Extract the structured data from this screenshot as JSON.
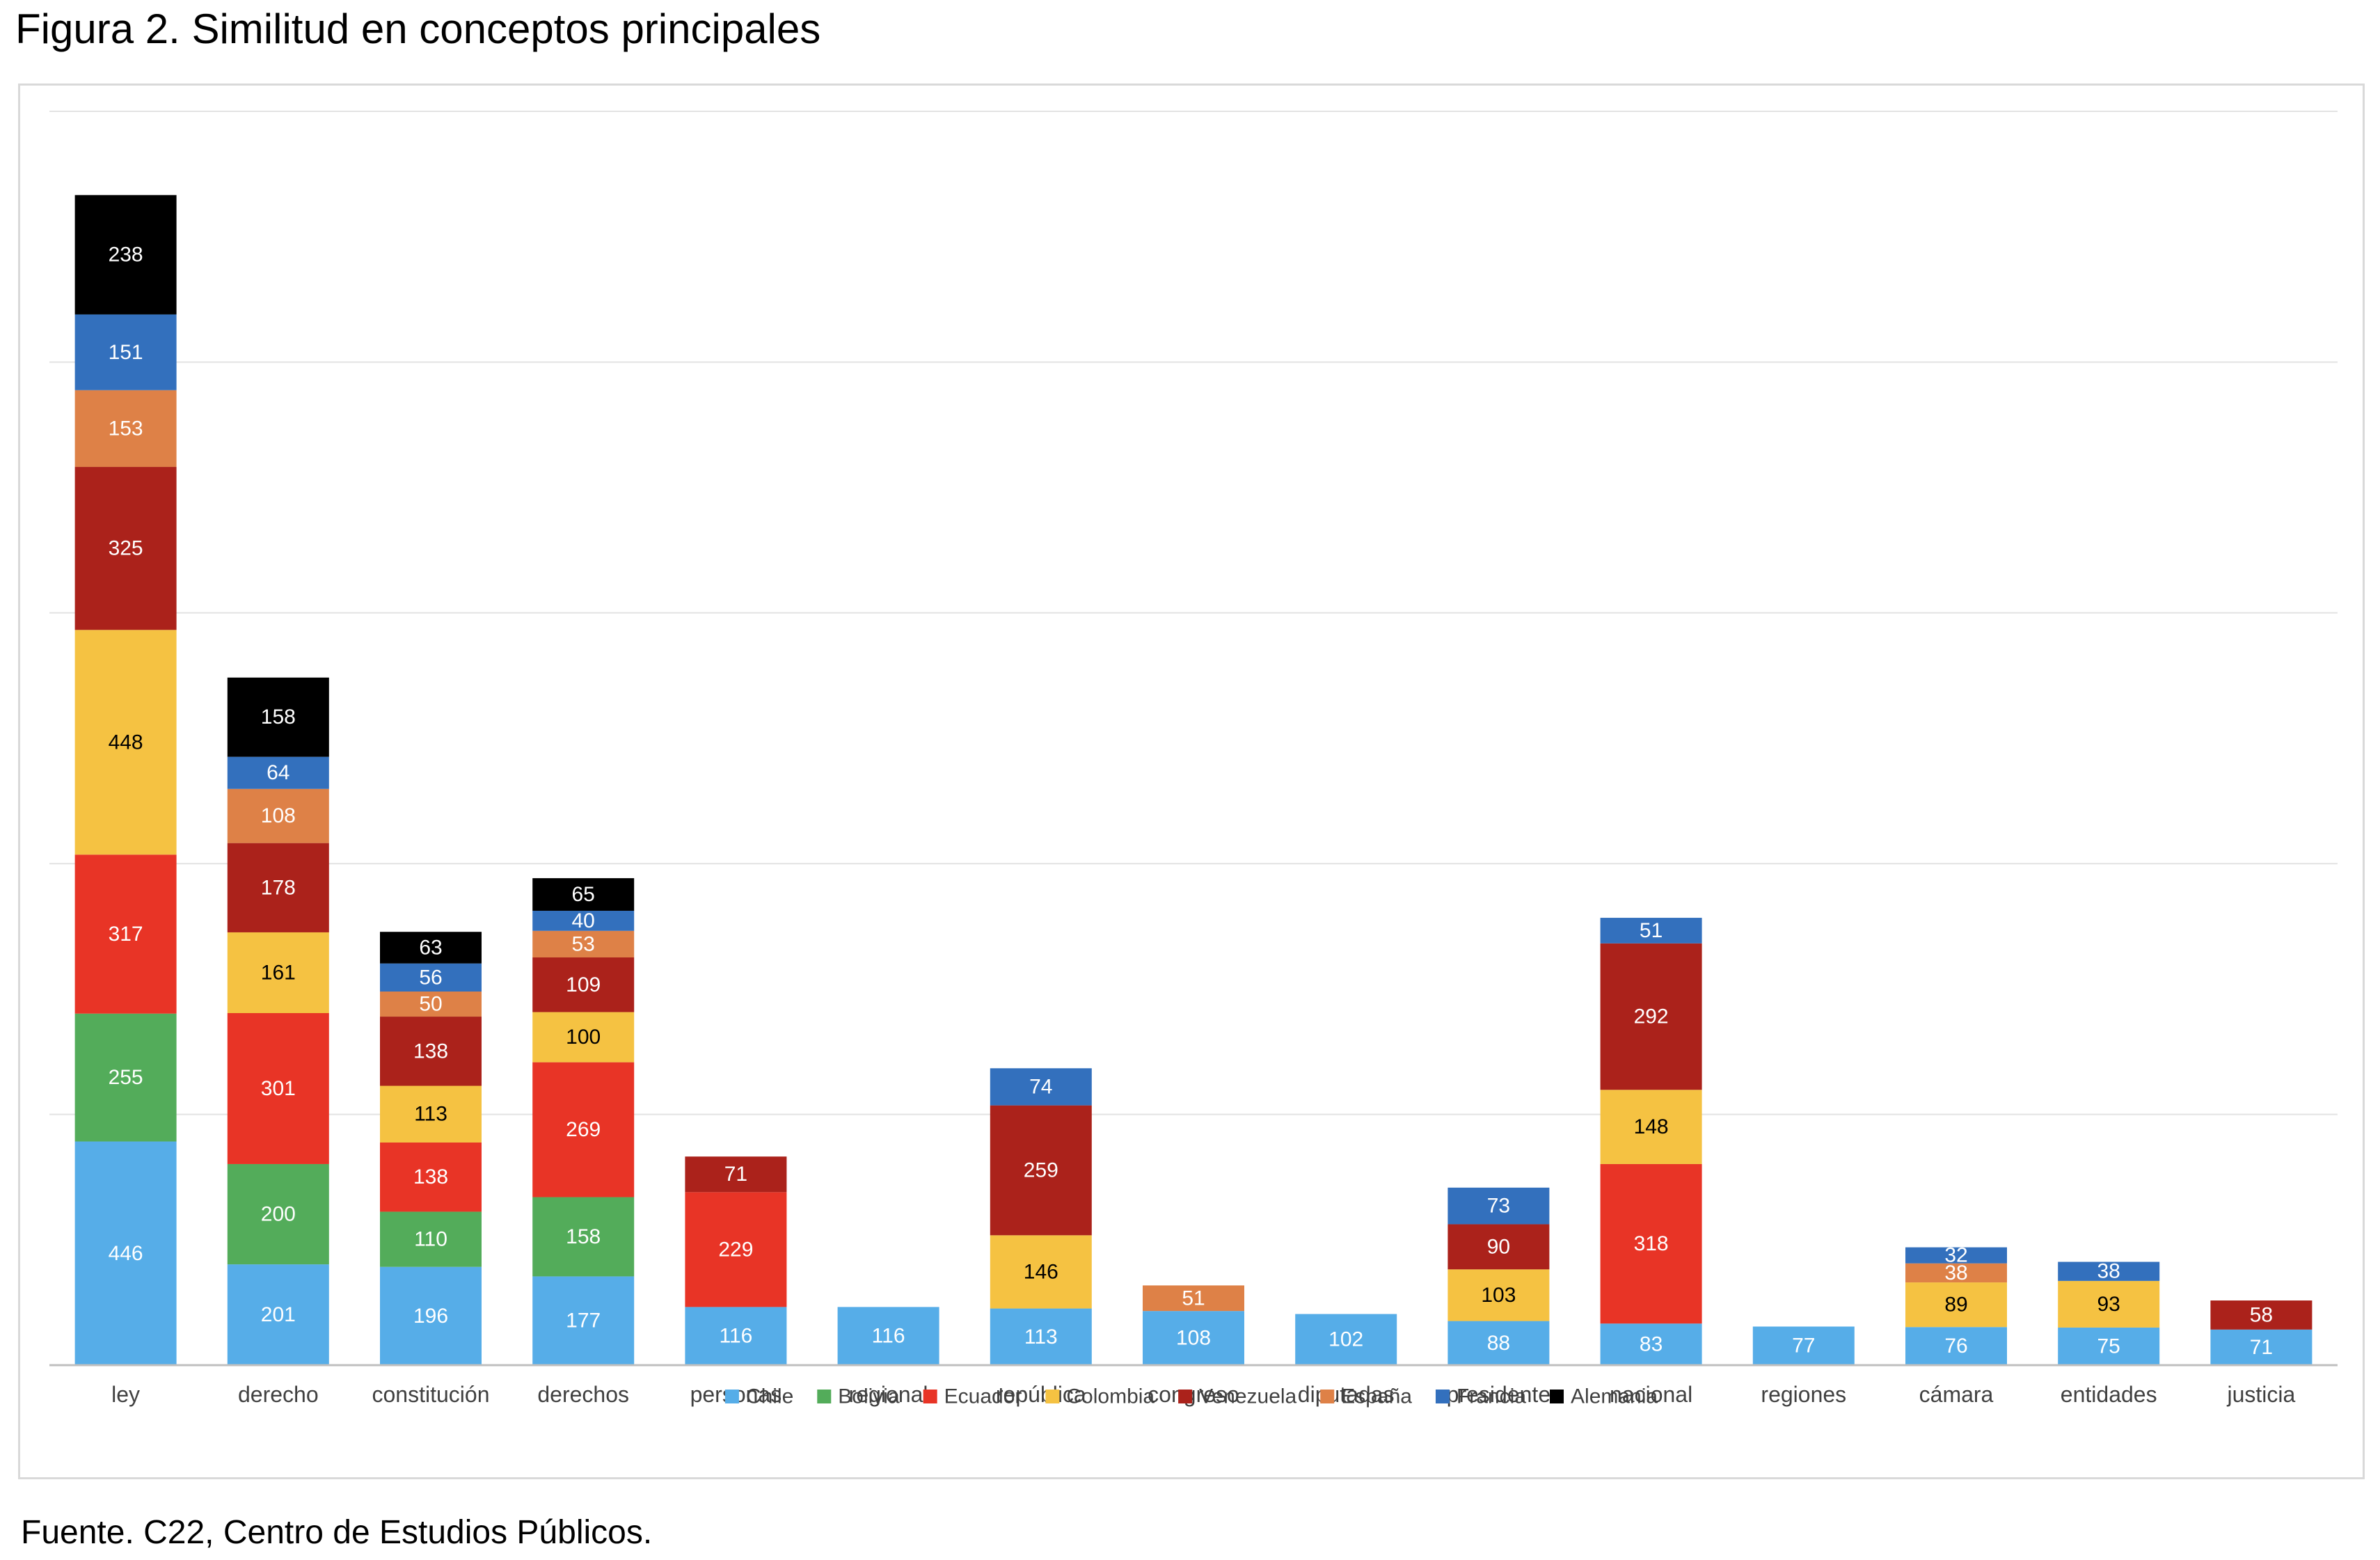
{
  "title": "Figura 2. Similitud en conceptos principales",
  "source": "Fuente. C22, Centro de Estudios Públicos.",
  "chart_data": {
    "type": "bar",
    "stacked": true,
    "title": "",
    "xlabel": "",
    "ylabel": "",
    "ylim": [
      0,
      2500
    ],
    "grid": true,
    "legend_position": "bottom",
    "categories": [
      "ley",
      "derecho",
      "constitución",
      "derechos",
      "personas",
      "regional",
      "república",
      "congreso",
      "diputadas",
      "presidente",
      "nacional",
      "regiones",
      "cámara",
      "entidades",
      "justicia"
    ],
    "series": [
      {
        "name": "Chile",
        "color": "#56ADE8",
        "label_color": "#ffffff",
        "values": [
          446,
          201,
          196,
          177,
          116,
          116,
          113,
          108,
          102,
          88,
          83,
          77,
          76,
          75,
          71
        ]
      },
      {
        "name": "Bolivia",
        "color": "#53AC5A",
        "label_color": "#ffffff",
        "values": [
          255,
          200,
          110,
          158,
          null,
          null,
          null,
          null,
          null,
          null,
          null,
          null,
          null,
          null,
          null
        ]
      },
      {
        "name": "Ecuador",
        "color": "#E83426",
        "label_color": "#ffffff",
        "values": [
          317,
          301,
          138,
          269,
          229,
          null,
          null,
          null,
          null,
          null,
          318,
          null,
          null,
          null,
          null
        ]
      },
      {
        "name": "Colombia",
        "color": "#F5C242",
        "label_color": "#000000",
        "values": [
          448,
          161,
          113,
          100,
          null,
          null,
          146,
          null,
          null,
          103,
          148,
          null,
          89,
          93,
          null
        ]
      },
      {
        "name": "Venezuela",
        "color": "#AB221B",
        "label_color": "#ffffff",
        "values": [
          325,
          178,
          138,
          109,
          71,
          null,
          259,
          null,
          null,
          90,
          292,
          null,
          null,
          null,
          58
        ]
      },
      {
        "name": "España",
        "color": "#DE8147",
        "label_color": "#ffffff",
        "values": [
          153,
          108,
          50,
          53,
          null,
          null,
          null,
          51,
          null,
          null,
          null,
          null,
          38,
          null,
          null
        ]
      },
      {
        "name": "Francia",
        "color": "#3370BD",
        "label_color": "#ffffff",
        "values": [
          151,
          64,
          56,
          40,
          null,
          null,
          74,
          null,
          null,
          73,
          51,
          null,
          32,
          38,
          null
        ]
      },
      {
        "name": "Alemania",
        "color": "#000000",
        "label_color": "#ffffff",
        "values": [
          238,
          158,
          63,
          65,
          null,
          null,
          null,
          null,
          null,
          null,
          null,
          null,
          null,
          null,
          null
        ]
      }
    ]
  }
}
